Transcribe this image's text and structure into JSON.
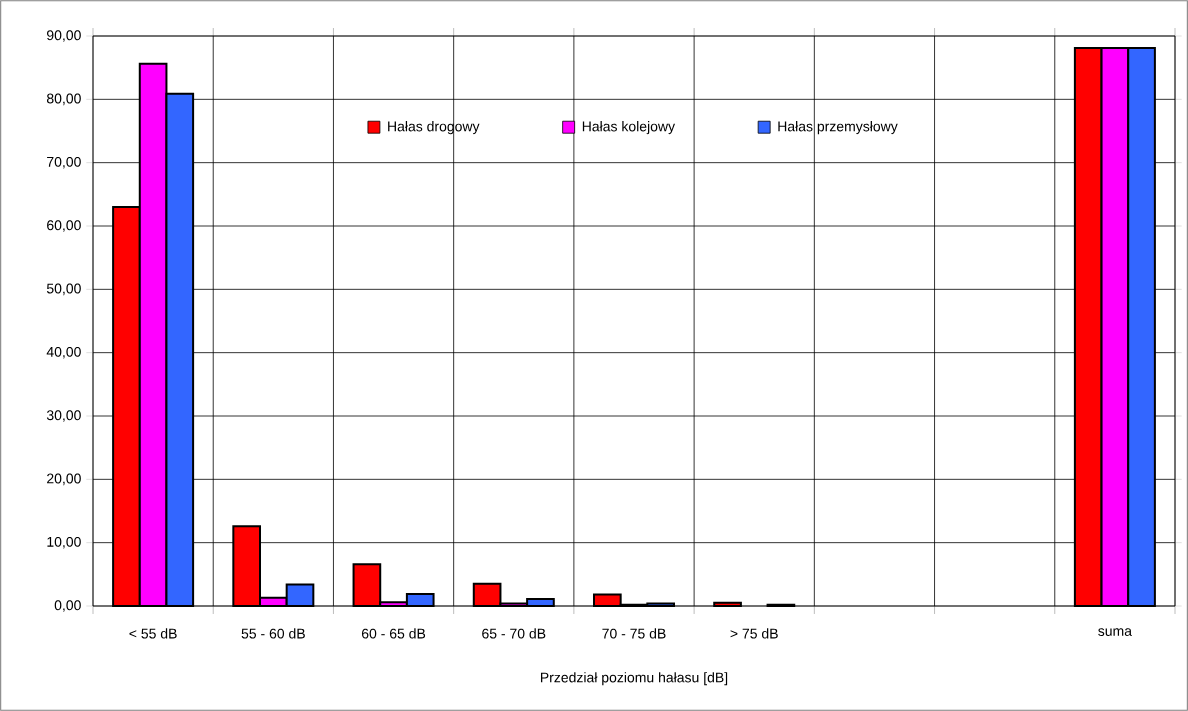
{
  "chart_data": {
    "type": "bar",
    "xlabel": "Przedział poziomu hałasu [dB]",
    "categories": [
      "< 55 dB",
      "55 - 60 dB",
      "60 - 65 dB",
      "65 - 70 dB",
      "70 - 75 dB",
      "> 75 dB",
      null,
      null,
      "suma"
    ],
    "series": [
      {
        "name": "Hałas drogowy",
        "color": "#ff0000",
        "values": [
          63.0,
          12.6,
          6.6,
          3.5,
          1.8,
          0.5,
          null,
          null,
          88.1
        ]
      },
      {
        "name": "Hałas kolejowy",
        "color": "#ff00ff",
        "values": [
          85.6,
          1.3,
          0.6,
          0.4,
          0.2,
          null,
          null,
          null,
          88.1
        ]
      },
      {
        "name": "Hałas przemysłowy",
        "color": "#3366ff",
        "values": [
          80.9,
          3.4,
          1.9,
          1.1,
          0.4,
          0.2,
          null,
          null,
          88.1
        ]
      }
    ],
    "ylim": [
      0,
      90
    ],
    "yticks": [
      {
        "value": 0,
        "label": "0,00"
      },
      {
        "value": 10,
        "label": "10,00"
      },
      {
        "value": 20,
        "label": "20,00"
      },
      {
        "value": 30,
        "label": "30,00"
      },
      {
        "value": 40,
        "label": "40,00"
      },
      {
        "value": 50,
        "label": "50,00"
      },
      {
        "value": 60,
        "label": "60,00"
      },
      {
        "value": 70,
        "label": "70,00"
      },
      {
        "value": 80,
        "label": "80,00"
      },
      {
        "value": 90,
        "label": "90,00"
      }
    ],
    "grid": true,
    "legend": "top"
  }
}
